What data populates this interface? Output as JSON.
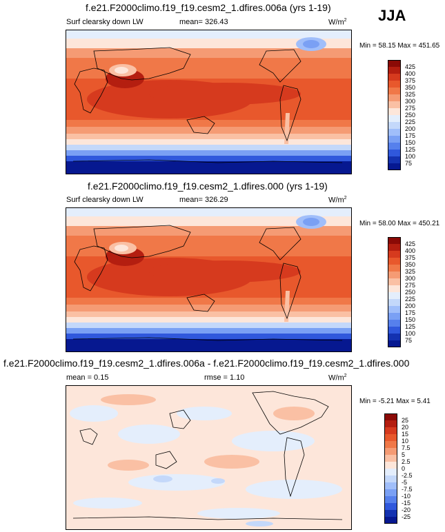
{
  "season": "JJA",
  "panels": [
    {
      "title": "f.e21.F2000climo.f19_f19.cesm2_1.dfires.006a (yrs 1-19)",
      "variable": "Surf clearsky down LW",
      "stat": "mean= 326.43",
      "units": "W/m",
      "units_sup": "2",
      "minmax": "Min =  58.15 Max = 451.65",
      "kind": "absolute"
    },
    {
      "title": "f.e21.F2000climo.f19_f19.cesm2_1.dfires.000 (yrs 1-19)",
      "variable": "Surf clearsky down LW",
      "stat": "mean= 326.29",
      "units": "W/m",
      "units_sup": "2",
      "minmax": "Min =  58.00 Max = 450.21",
      "kind": "absolute"
    },
    {
      "title": "f.e21.F2000climo.f19_f19.cesm2_1.dfires.006a - f.e21.F2000climo.f19_f19.cesm2_1.dfires.000",
      "stat_left": "mean =   0.15",
      "stat_mid": "rmse =   1.10",
      "units": "W/m",
      "units_sup": "2",
      "minmax": "Min =  -5.21 Max =   5.41",
      "kind": "diff"
    }
  ],
  "colorbar_abs": {
    "labels": [
      "425",
      "400",
      "375",
      "350",
      "325",
      "300",
      "275",
      "250",
      "225",
      "200",
      "175",
      "150",
      "125",
      "100",
      "75"
    ],
    "colors": [
      "#8b0a06",
      "#b41e10",
      "#d63a1e",
      "#e8582c",
      "#f07848",
      "#f59b74",
      "#fac0a4",
      "#fde6da",
      "#e4eefc",
      "#c4d8fa",
      "#a0befa",
      "#7aa0f4",
      "#5680ec",
      "#3058dc",
      "#1432b0",
      "#061890"
    ]
  },
  "colorbar_diff": {
    "labels": [
      "25",
      "20",
      "15",
      "10",
      "7.5",
      "5",
      "2.5",
      "0",
      "-2.5",
      "-5",
      "-7.5",
      "-10",
      "-15",
      "-20",
      "-25"
    ],
    "colors": [
      "#8b0a06",
      "#b41e10",
      "#d63a1e",
      "#e8582c",
      "#f07848",
      "#f59b74",
      "#fac0a4",
      "#fde6da",
      "#e4eefc",
      "#c4d8fa",
      "#a0befa",
      "#7aa0f4",
      "#5680ec",
      "#3058dc",
      "#1432b0",
      "#061890"
    ]
  }
}
